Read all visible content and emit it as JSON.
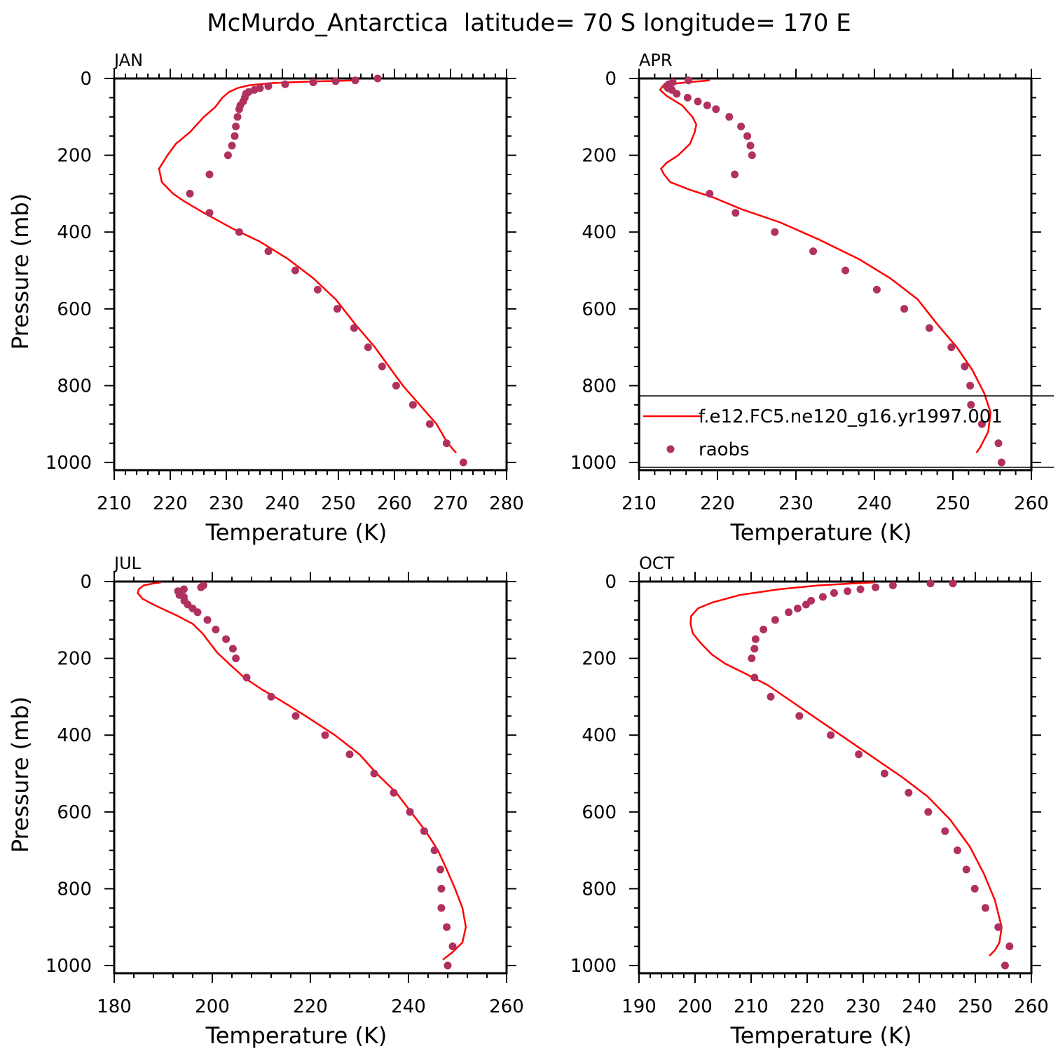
{
  "title": "McMurdo_Antarctica  latitude= 70 S longitude= 170 E",
  "colors": {
    "model": "#ff0000",
    "obs": "#b03060",
    "axis": "#000000"
  },
  "legend": {
    "model_label": "f.e12.FC5.ne120_g16.yr1997.001",
    "obs_label": "raobs",
    "placement": "inside APR panel, lower-left, clipped at right"
  },
  "chart_data": [
    {
      "type": "line+scatter",
      "panel": "JAN",
      "title": "JAN",
      "xlabel": "Temperature (K)",
      "ylabel": "Pressure (mb)",
      "xlim": [
        210,
        280
      ],
      "ylim": [
        1020,
        0
      ],
      "xticks": [
        210,
        220,
        230,
        240,
        250,
        260,
        270,
        280
      ],
      "yticks": [
        0,
        200,
        400,
        600,
        800,
        1000
      ],
      "series": [
        {
          "kind": "line",
          "points": [
            [
              253,
              5
            ],
            [
              245,
              8
            ],
            [
              238,
              12
            ],
            [
              234,
              18
            ],
            [
              232,
              25
            ],
            [
              230.5,
              35
            ],
            [
              229.3,
              50
            ],
            [
              228,
              75
            ],
            [
              226,
              100
            ],
            [
              223.5,
              140
            ],
            [
              221,
              170
            ],
            [
              219.5,
              200
            ],
            [
              218,
              235
            ],
            [
              218.5,
              270
            ],
            [
              220.5,
              300
            ],
            [
              222.5,
              320
            ],
            [
              226,
              350
            ],
            [
              231,
              390
            ],
            [
              236,
              425
            ],
            [
              241,
              470
            ],
            [
              245.5,
              520
            ],
            [
              249.5,
              575
            ],
            [
              253,
              640
            ],
            [
              256.5,
              700
            ],
            [
              259,
              750
            ],
            [
              261.5,
              800
            ],
            [
              264.5,
              850
            ],
            [
              267.5,
              900
            ],
            [
              269.5,
              950
            ],
            [
              271,
              975
            ]
          ]
        },
        {
          "kind": "scatter",
          "points": [
            [
              257,
              0
            ],
            [
              253,
              5
            ],
            [
              249.5,
              7
            ],
            [
              245.5,
              10
            ],
            [
              240.5,
              15
            ],
            [
              237.5,
              20
            ],
            [
              236,
              25
            ],
            [
              235,
              30
            ],
            [
              234,
              35
            ],
            [
              233.5,
              40
            ],
            [
              233.3,
              50
            ],
            [
              233,
              60
            ],
            [
              232.5,
              70
            ],
            [
              232.3,
              80
            ],
            [
              232,
              100
            ],
            [
              231.7,
              125
            ],
            [
              231.5,
              150
            ],
            [
              231,
              175
            ],
            [
              230.3,
              200
            ],
            [
              227,
              250
            ],
            [
              223.5,
              300
            ],
            [
              227,
              350
            ],
            [
              232.3,
              400
            ],
            [
              237.5,
              450
            ],
            [
              242.3,
              500
            ],
            [
              246.3,
              550
            ],
            [
              249.8,
              600
            ],
            [
              252.8,
              650
            ],
            [
              255.3,
              700
            ],
            [
              257.8,
              750
            ],
            [
              260.3,
              800
            ],
            [
              263.3,
              850
            ],
            [
              266.3,
              900
            ],
            [
              269.3,
              950
            ],
            [
              272.3,
              1000
            ]
          ]
        }
      ]
    },
    {
      "type": "line+scatter",
      "panel": "APR",
      "title": "APR",
      "xlabel": "Temperature (K)",
      "ylabel": "",
      "xlim": [
        210,
        260
      ],
      "ylim": [
        1020,
        0
      ],
      "xticks": [
        210,
        220,
        230,
        240,
        250,
        260
      ],
      "yticks": [
        0,
        200,
        400,
        600,
        800,
        1000
      ],
      "series": [
        {
          "kind": "line",
          "points": [
            [
              219,
              5
            ],
            [
              216,
              10
            ],
            [
              214,
              15
            ],
            [
              213,
              20
            ],
            [
              212.7,
              30
            ],
            [
              213.5,
              45
            ],
            [
              215.5,
              70
            ],
            [
              216.8,
              100
            ],
            [
              217.3,
              120
            ],
            [
              217.1,
              140
            ],
            [
              216.5,
              170
            ],
            [
              215,
              200
            ],
            [
              213.5,
              220
            ],
            [
              212.8,
              235
            ],
            [
              213.2,
              250
            ],
            [
              214,
              270
            ],
            [
              216.5,
              290
            ],
            [
              219.5,
              310
            ],
            [
              223,
              340
            ],
            [
              228,
              375
            ],
            [
              233,
              420
            ],
            [
              238,
              470
            ],
            [
              242,
              520
            ],
            [
              245.5,
              575
            ],
            [
              248,
              640
            ],
            [
              250.5,
              700
            ],
            [
              252.5,
              760
            ],
            [
              254,
              820
            ],
            [
              254.8,
              870
            ],
            [
              254.5,
              920
            ],
            [
              253.5,
              960
            ],
            [
              253,
              975
            ]
          ]
        },
        {
          "kind": "scatter",
          "points": [
            [
              216.3,
              5
            ],
            [
              214.3,
              10
            ],
            [
              213.8,
              15
            ],
            [
              213.5,
              20
            ],
            [
              213.7,
              25
            ],
            [
              214.2,
              30
            ],
            [
              214.8,
              40
            ],
            [
              216.2,
              50
            ],
            [
              217.5,
              60
            ],
            [
              218.7,
              70
            ],
            [
              219.8,
              80
            ],
            [
              221.5,
              100
            ],
            [
              223,
              125
            ],
            [
              223.8,
              150
            ],
            [
              224.2,
              175
            ],
            [
              224.4,
              200
            ],
            [
              222.2,
              250
            ],
            [
              219,
              300
            ],
            [
              222.3,
              350
            ],
            [
              227.3,
              400
            ],
            [
              232.2,
              450
            ],
            [
              236.3,
              500
            ],
            [
              240.3,
              550
            ],
            [
              243.8,
              600
            ],
            [
              247,
              650
            ],
            [
              249.8,
              700
            ],
            [
              251.5,
              750
            ],
            [
              252.2,
              800
            ],
            [
              252.3,
              850
            ],
            [
              253.7,
              900
            ],
            [
              255.8,
              950
            ],
            [
              256.2,
              1000
            ]
          ]
        }
      ]
    },
    {
      "type": "line+scatter",
      "panel": "JUL",
      "title": "JUL",
      "xlabel": "Temperature (K)",
      "ylabel": "Pressure (mb)",
      "xlim": [
        180,
        260
      ],
      "ylim": [
        1020,
        0
      ],
      "xticks": [
        180,
        200,
        220,
        240,
        260
      ],
      "yticks": [
        0,
        200,
        400,
        600,
        800,
        1000
      ],
      "series": [
        {
          "kind": "line",
          "points": [
            [
              189.5,
              2
            ],
            [
              188,
              5
            ],
            [
              186,
              10
            ],
            [
              185,
              20
            ],
            [
              184.8,
              30
            ],
            [
              185.8,
              45
            ],
            [
              188,
              60
            ],
            [
              190.5,
              75
            ],
            [
              193,
              90
            ],
            [
              196,
              110
            ],
            [
              198,
              135
            ],
            [
              199.5,
              160
            ],
            [
              201,
              185
            ],
            [
              203.5,
              215
            ],
            [
              206.5,
              250
            ],
            [
              210,
              280
            ],
            [
              214,
              310
            ],
            [
              219,
              350
            ],
            [
              225,
              400
            ],
            [
              230,
              450
            ],
            [
              233.5,
              500
            ],
            [
              237.5,
              550
            ],
            [
              240.5,
              600
            ],
            [
              243.5,
              650
            ],
            [
              246,
              700
            ],
            [
              247.8,
              750
            ],
            [
              249.5,
              800
            ],
            [
              251,
              850
            ],
            [
              251.7,
              900
            ],
            [
              251,
              940
            ],
            [
              249,
              965
            ],
            [
              247,
              985
            ]
          ]
        },
        {
          "kind": "scatter",
          "points": [
            [
              198.2,
              10
            ],
            [
              197.7,
              15
            ],
            [
              194.2,
              20
            ],
            [
              193,
              25
            ],
            [
              193.3,
              35
            ],
            [
              194.2,
              40
            ],
            [
              194.3,
              50
            ],
            [
              195,
              60
            ],
            [
              196,
              70
            ],
            [
              197,
              80
            ],
            [
              199,
              100
            ],
            [
              200.7,
              125
            ],
            [
              202.8,
              150
            ],
            [
              204.2,
              175
            ],
            [
              204.8,
              200
            ],
            [
              207,
              250
            ],
            [
              212,
              300
            ],
            [
              217,
              350
            ],
            [
              223,
              400
            ],
            [
              228,
              450
            ],
            [
              233,
              500
            ],
            [
              237,
              550
            ],
            [
              240.3,
              600
            ],
            [
              243.2,
              650
            ],
            [
              245.3,
              700
            ],
            [
              246.5,
              750
            ],
            [
              246.7,
              800
            ],
            [
              246.7,
              850
            ],
            [
              247.8,
              900
            ],
            [
              249,
              950
            ],
            [
              248,
              1000
            ]
          ]
        }
      ]
    },
    {
      "type": "line+scatter",
      "panel": "OCT",
      "title": "OCT",
      "xlabel": "Temperature (K)",
      "ylabel": "",
      "xlim": [
        190,
        260
      ],
      "ylim": [
        1020,
        0
      ],
      "xticks": [
        190,
        200,
        210,
        220,
        230,
        240,
        250,
        260
      ],
      "yticks": [
        0,
        200,
        400,
        600,
        800,
        1000
      ],
      "series": [
        {
          "kind": "line",
          "points": [
            [
              232,
              2
            ],
            [
              228,
              5
            ],
            [
              222,
              10
            ],
            [
              215,
              20
            ],
            [
              208,
              35
            ],
            [
              203,
              55
            ],
            [
              200.5,
              70
            ],
            [
              199.3,
              90
            ],
            [
              199.2,
              110
            ],
            [
              199.6,
              135
            ],
            [
              201,
              160
            ],
            [
              203,
              190
            ],
            [
              205.5,
              215
            ],
            [
              209,
              240
            ],
            [
              213,
              270
            ],
            [
              217,
              310
            ],
            [
              222,
              360
            ],
            [
              227,
              410
            ],
            [
              232,
              460
            ],
            [
              237,
              510
            ],
            [
              241.5,
              560
            ],
            [
              245.5,
              620
            ],
            [
              249,
              690
            ],
            [
              251.5,
              760
            ],
            [
              253.5,
              830
            ],
            [
              254.7,
              900
            ],
            [
              254.3,
              940
            ],
            [
              253.5,
              960
            ],
            [
              252.5,
              975
            ]
          ]
        },
        {
          "kind": "scatter",
          "points": [
            [
              246,
              5
            ],
            [
              242,
              5
            ],
            [
              235.3,
              10
            ],
            [
              232.2,
              15
            ],
            [
              229.5,
              20
            ],
            [
              227.2,
              25
            ],
            [
              224.8,
              30
            ],
            [
              222.8,
              40
            ],
            [
              220.7,
              50
            ],
            [
              219.8,
              60
            ],
            [
              218.3,
              70
            ],
            [
              216.7,
              80
            ],
            [
              214.3,
              100
            ],
            [
              212.2,
              125
            ],
            [
              210.8,
              150
            ],
            [
              210.6,
              175
            ],
            [
              210.1,
              200
            ],
            [
              210.6,
              250
            ],
            [
              213.5,
              300
            ],
            [
              218.6,
              350
            ],
            [
              224.2,
              400
            ],
            [
              229.2,
              450
            ],
            [
              233.8,
              500
            ],
            [
              238.1,
              550
            ],
            [
              241.6,
              600
            ],
            [
              244.6,
              650
            ],
            [
              246.8,
              700
            ],
            [
              248.4,
              750
            ],
            [
              249.9,
              800
            ],
            [
              251.8,
              850
            ],
            [
              254.1,
              900
            ],
            [
              256.1,
              950
            ],
            [
              255.3,
              1000
            ]
          ]
        }
      ]
    }
  ]
}
